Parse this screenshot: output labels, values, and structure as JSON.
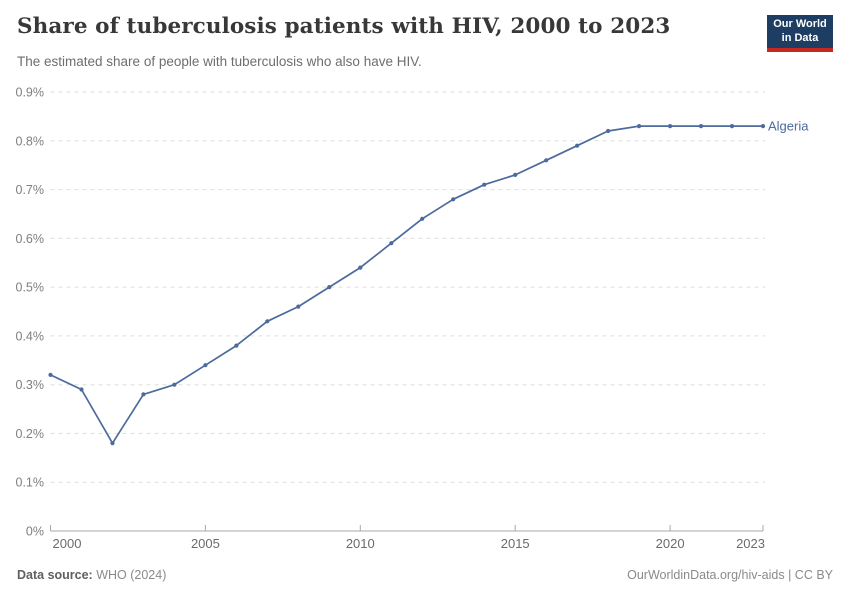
{
  "header": {
    "title": "Share of tuberculosis patients with HIV, 2000 to 2023",
    "subtitle": "The estimated share of people with tuberculosis who also have HIV.",
    "logo": {
      "line1": "Our World",
      "line2": "in Data",
      "bg_color": "#1d3d63",
      "bar_color": "#c5291f"
    }
  },
  "chart_data": {
    "type": "line",
    "title": "Share of tuberculosis patients with HIV, 2000 to 2023",
    "xlabel": "",
    "ylabel": "",
    "xlim": [
      2000,
      2023
    ],
    "ylim": [
      0,
      0.9
    ],
    "grid": "horizontal-dashed",
    "legend_position": "end-of-line-label",
    "xticks": [
      2000,
      2005,
      2010,
      2015,
      2020,
      2023
    ],
    "yticks": [
      {
        "value": 0.0,
        "label": "0%"
      },
      {
        "value": 0.1,
        "label": "0.1%"
      },
      {
        "value": 0.2,
        "label": "0.2%"
      },
      {
        "value": 0.3,
        "label": "0.3%"
      },
      {
        "value": 0.4,
        "label": "0.4%"
      },
      {
        "value": 0.5,
        "label": "0.5%"
      },
      {
        "value": 0.6,
        "label": "0.6%"
      },
      {
        "value": 0.7,
        "label": "0.7%"
      },
      {
        "value": 0.8,
        "label": "0.8%"
      },
      {
        "value": 0.9,
        "label": "0.9%"
      }
    ],
    "series": [
      {
        "name": "Algeria",
        "color": "#4c6a9c",
        "unit": "%",
        "x": [
          2000,
          2001,
          2002,
          2003,
          2004,
          2005,
          2006,
          2007,
          2008,
          2009,
          2010,
          2011,
          2012,
          2013,
          2014,
          2015,
          2016,
          2017,
          2018,
          2019,
          2020,
          2021,
          2022,
          2023
        ],
        "values": [
          0.32,
          0.29,
          0.18,
          0.28,
          0.3,
          0.34,
          0.38,
          0.43,
          0.46,
          0.5,
          0.54,
          0.59,
          0.64,
          0.68,
          0.71,
          0.73,
          0.76,
          0.79,
          0.82,
          0.83,
          0.83,
          0.83,
          0.83,
          0.83
        ]
      }
    ],
    "colors": {
      "gridline": "#dedede",
      "axis": "#a8a8a8",
      "tick_label": "#7f7f7f",
      "x_tick_label": "#6b6b6b"
    }
  },
  "footer": {
    "source_label": "Data source:",
    "source_value": " WHO (2024)",
    "credit": "OurWorldinData.org/hiv-aids | CC BY"
  }
}
